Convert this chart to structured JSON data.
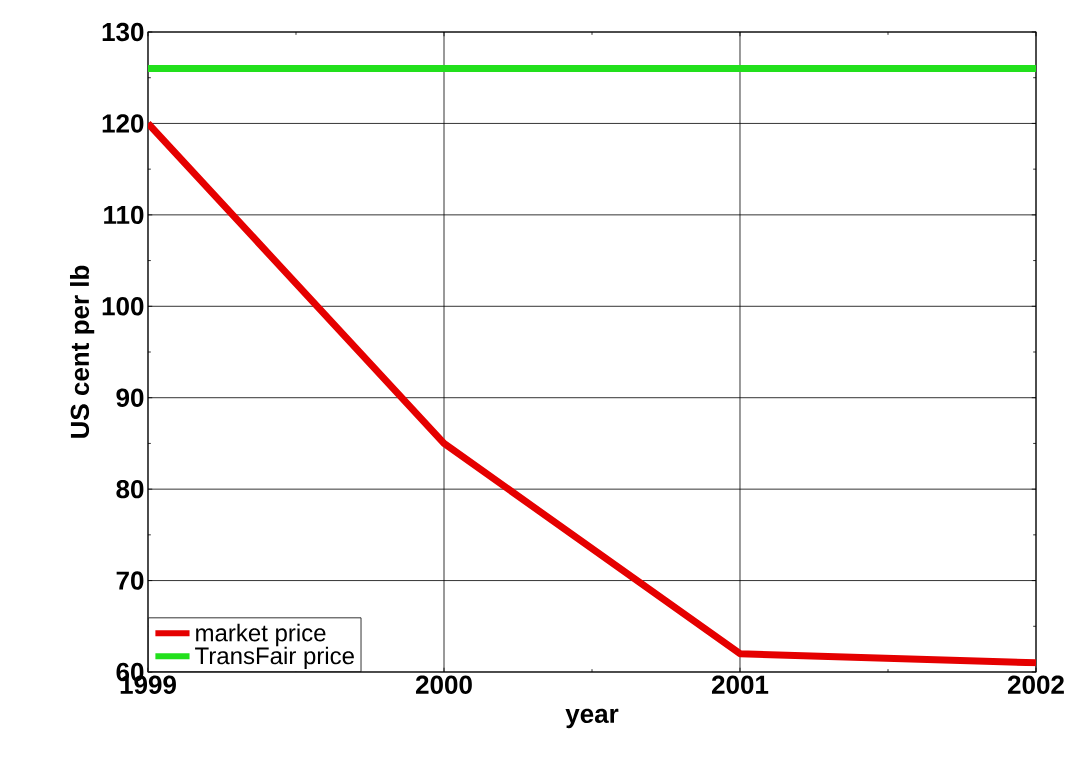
{
  "chart_data": {
    "type": "line",
    "xlabel": "year",
    "ylabel": "US cent per lb",
    "x": [
      1999,
      2000,
      2001,
      2002
    ],
    "series": [
      {
        "name": "market price",
        "color": "#e50000",
        "values": [
          120,
          85,
          62,
          61
        ]
      },
      {
        "name": "TransFair price",
        "color": "#22e01c",
        "values": [
          126,
          126,
          126,
          126
        ]
      }
    ],
    "xlim": [
      1999,
      2002
    ],
    "ylim": [
      60,
      130
    ],
    "xticks": [
      1999,
      2000,
      2001,
      2002
    ],
    "yticks": [
      60,
      70,
      80,
      90,
      100,
      110,
      120,
      130
    ],
    "grid": true,
    "legend": "bottom left",
    "marker": "none",
    "line_style": "solid"
  }
}
